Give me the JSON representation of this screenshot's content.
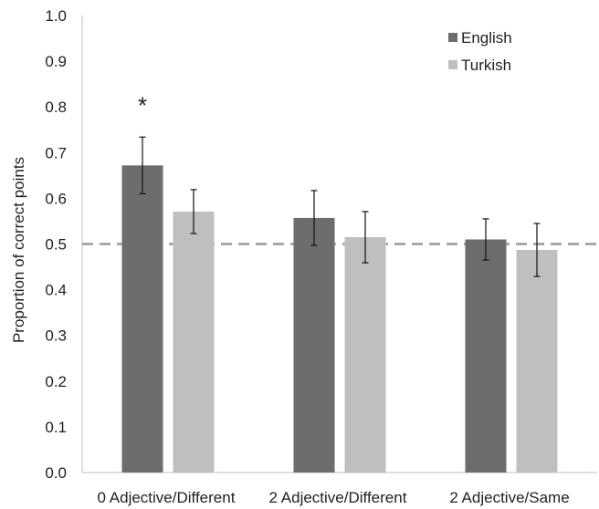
{
  "chart_data": {
    "type": "bar",
    "ylabel": "Proportion of correct points",
    "ylim": [
      0,
      1.0
    ],
    "yticks": [
      "0.0",
      "0.1",
      "0.2",
      "0.3",
      "0.4",
      "0.5",
      "0.6",
      "0.7",
      "0.8",
      "0.9",
      "1.0"
    ],
    "categories": [
      "0 Adjective/Different",
      "2 Adjective/Different",
      "2 Adjective/Same"
    ],
    "series": [
      {
        "name": "English",
        "color": "#6d6d6d",
        "values": [
          0.672,
          0.557,
          0.51
        ],
        "error": [
          0.062,
          0.06,
          0.045
        ]
      },
      {
        "name": "Turkish",
        "color": "#bfbfbf",
        "values": [
          0.571,
          0.515,
          0.487
        ],
        "error": [
          0.048,
          0.056,
          0.058
        ]
      }
    ],
    "reference_line": {
      "value": 0.5,
      "style": "dashed",
      "color": "#9a9a9a"
    },
    "annotations": [
      {
        "text": "*",
        "category": "0 Adjective/Different",
        "series": "English"
      }
    ],
    "legend": "top-right",
    "grid": false
  }
}
